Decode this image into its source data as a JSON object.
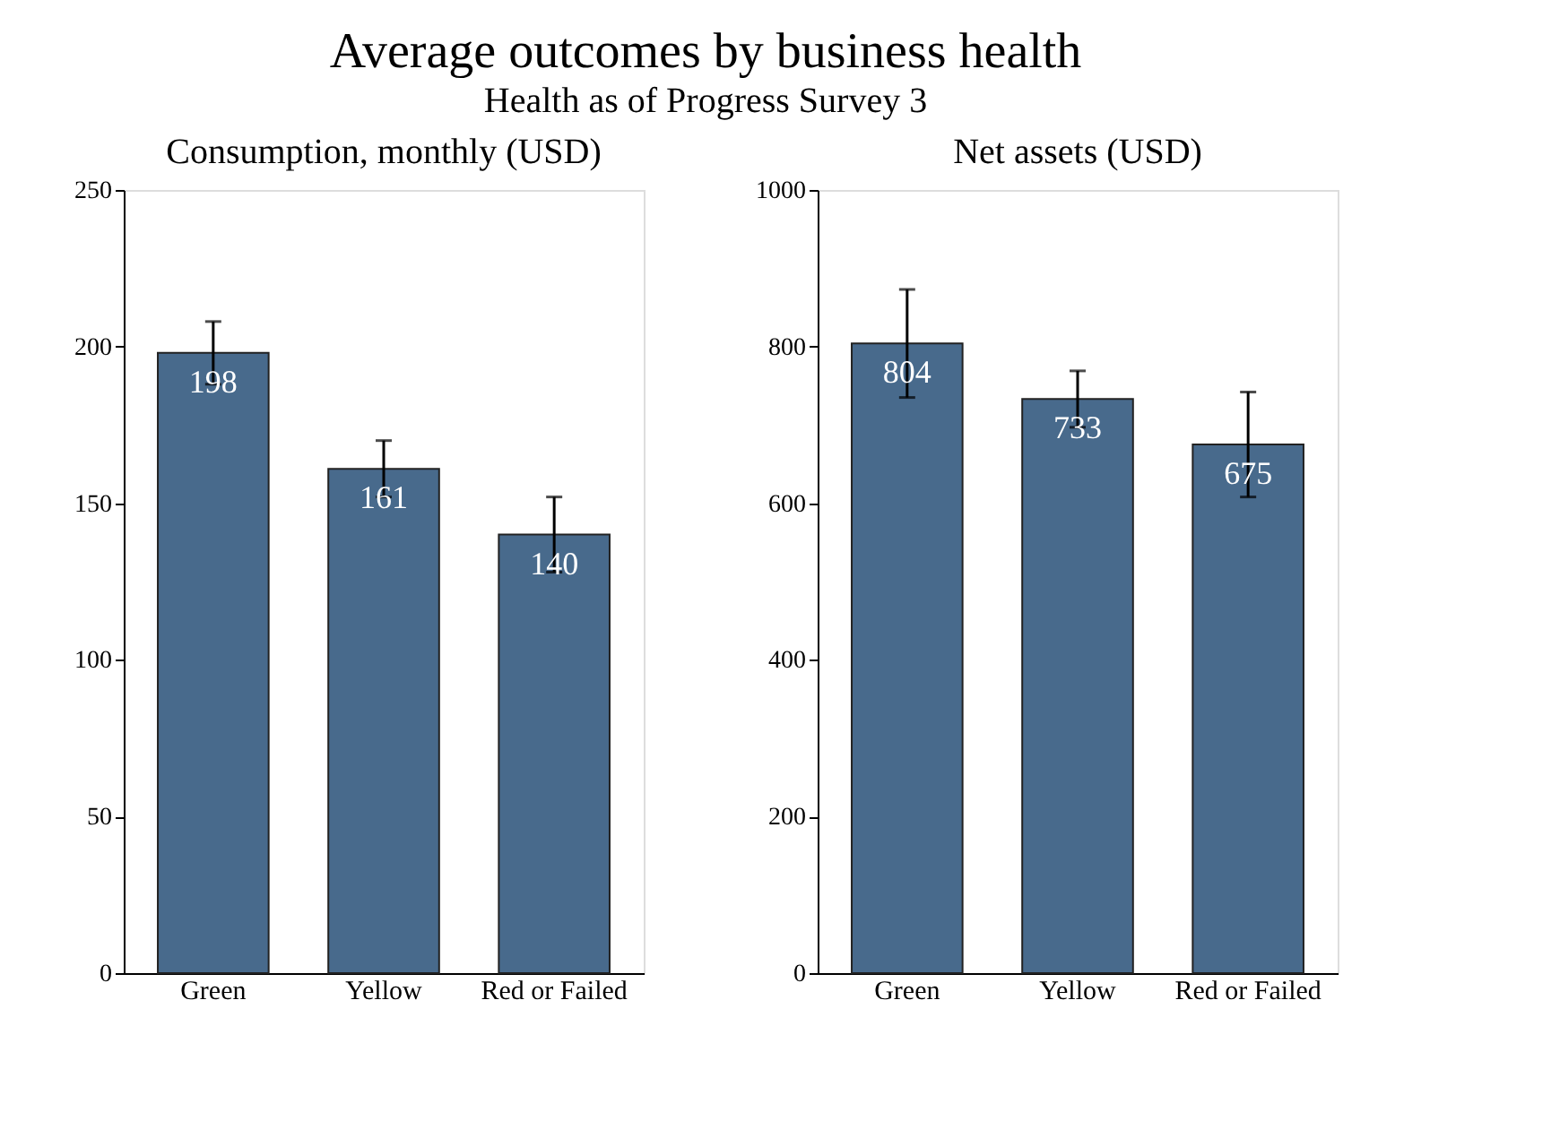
{
  "chart_data": [
    {
      "type": "other",
      "title": "Average outcomes by business health",
      "subtitle": "Health as of Progress Survey 3"
    },
    {
      "type": "bar",
      "title": "Consumption, monthly (USD)",
      "categories": [
        "Green",
        "Yellow",
        "Red or Failed"
      ],
      "values": [
        198,
        161,
        140
      ],
      "errors": [
        10,
        9,
        12
      ],
      "color": "#486a8c",
      "ylim": [
        0,
        250
      ],
      "yticks": [
        0,
        50,
        100,
        150,
        200,
        250
      ],
      "data_labels": true
    },
    {
      "type": "bar",
      "title": "Net assets (USD)",
      "categories": [
        "Green",
        "Yellow",
        "Red or Failed"
      ],
      "values": [
        804,
        733,
        675
      ],
      "errors": [
        69,
        36,
        67
      ],
      "color": "#486a8c",
      "ylim": [
        0,
        1000
      ],
      "yticks": [
        0,
        200,
        400,
        600,
        800,
        1000
      ],
      "data_labels": true
    }
  ]
}
